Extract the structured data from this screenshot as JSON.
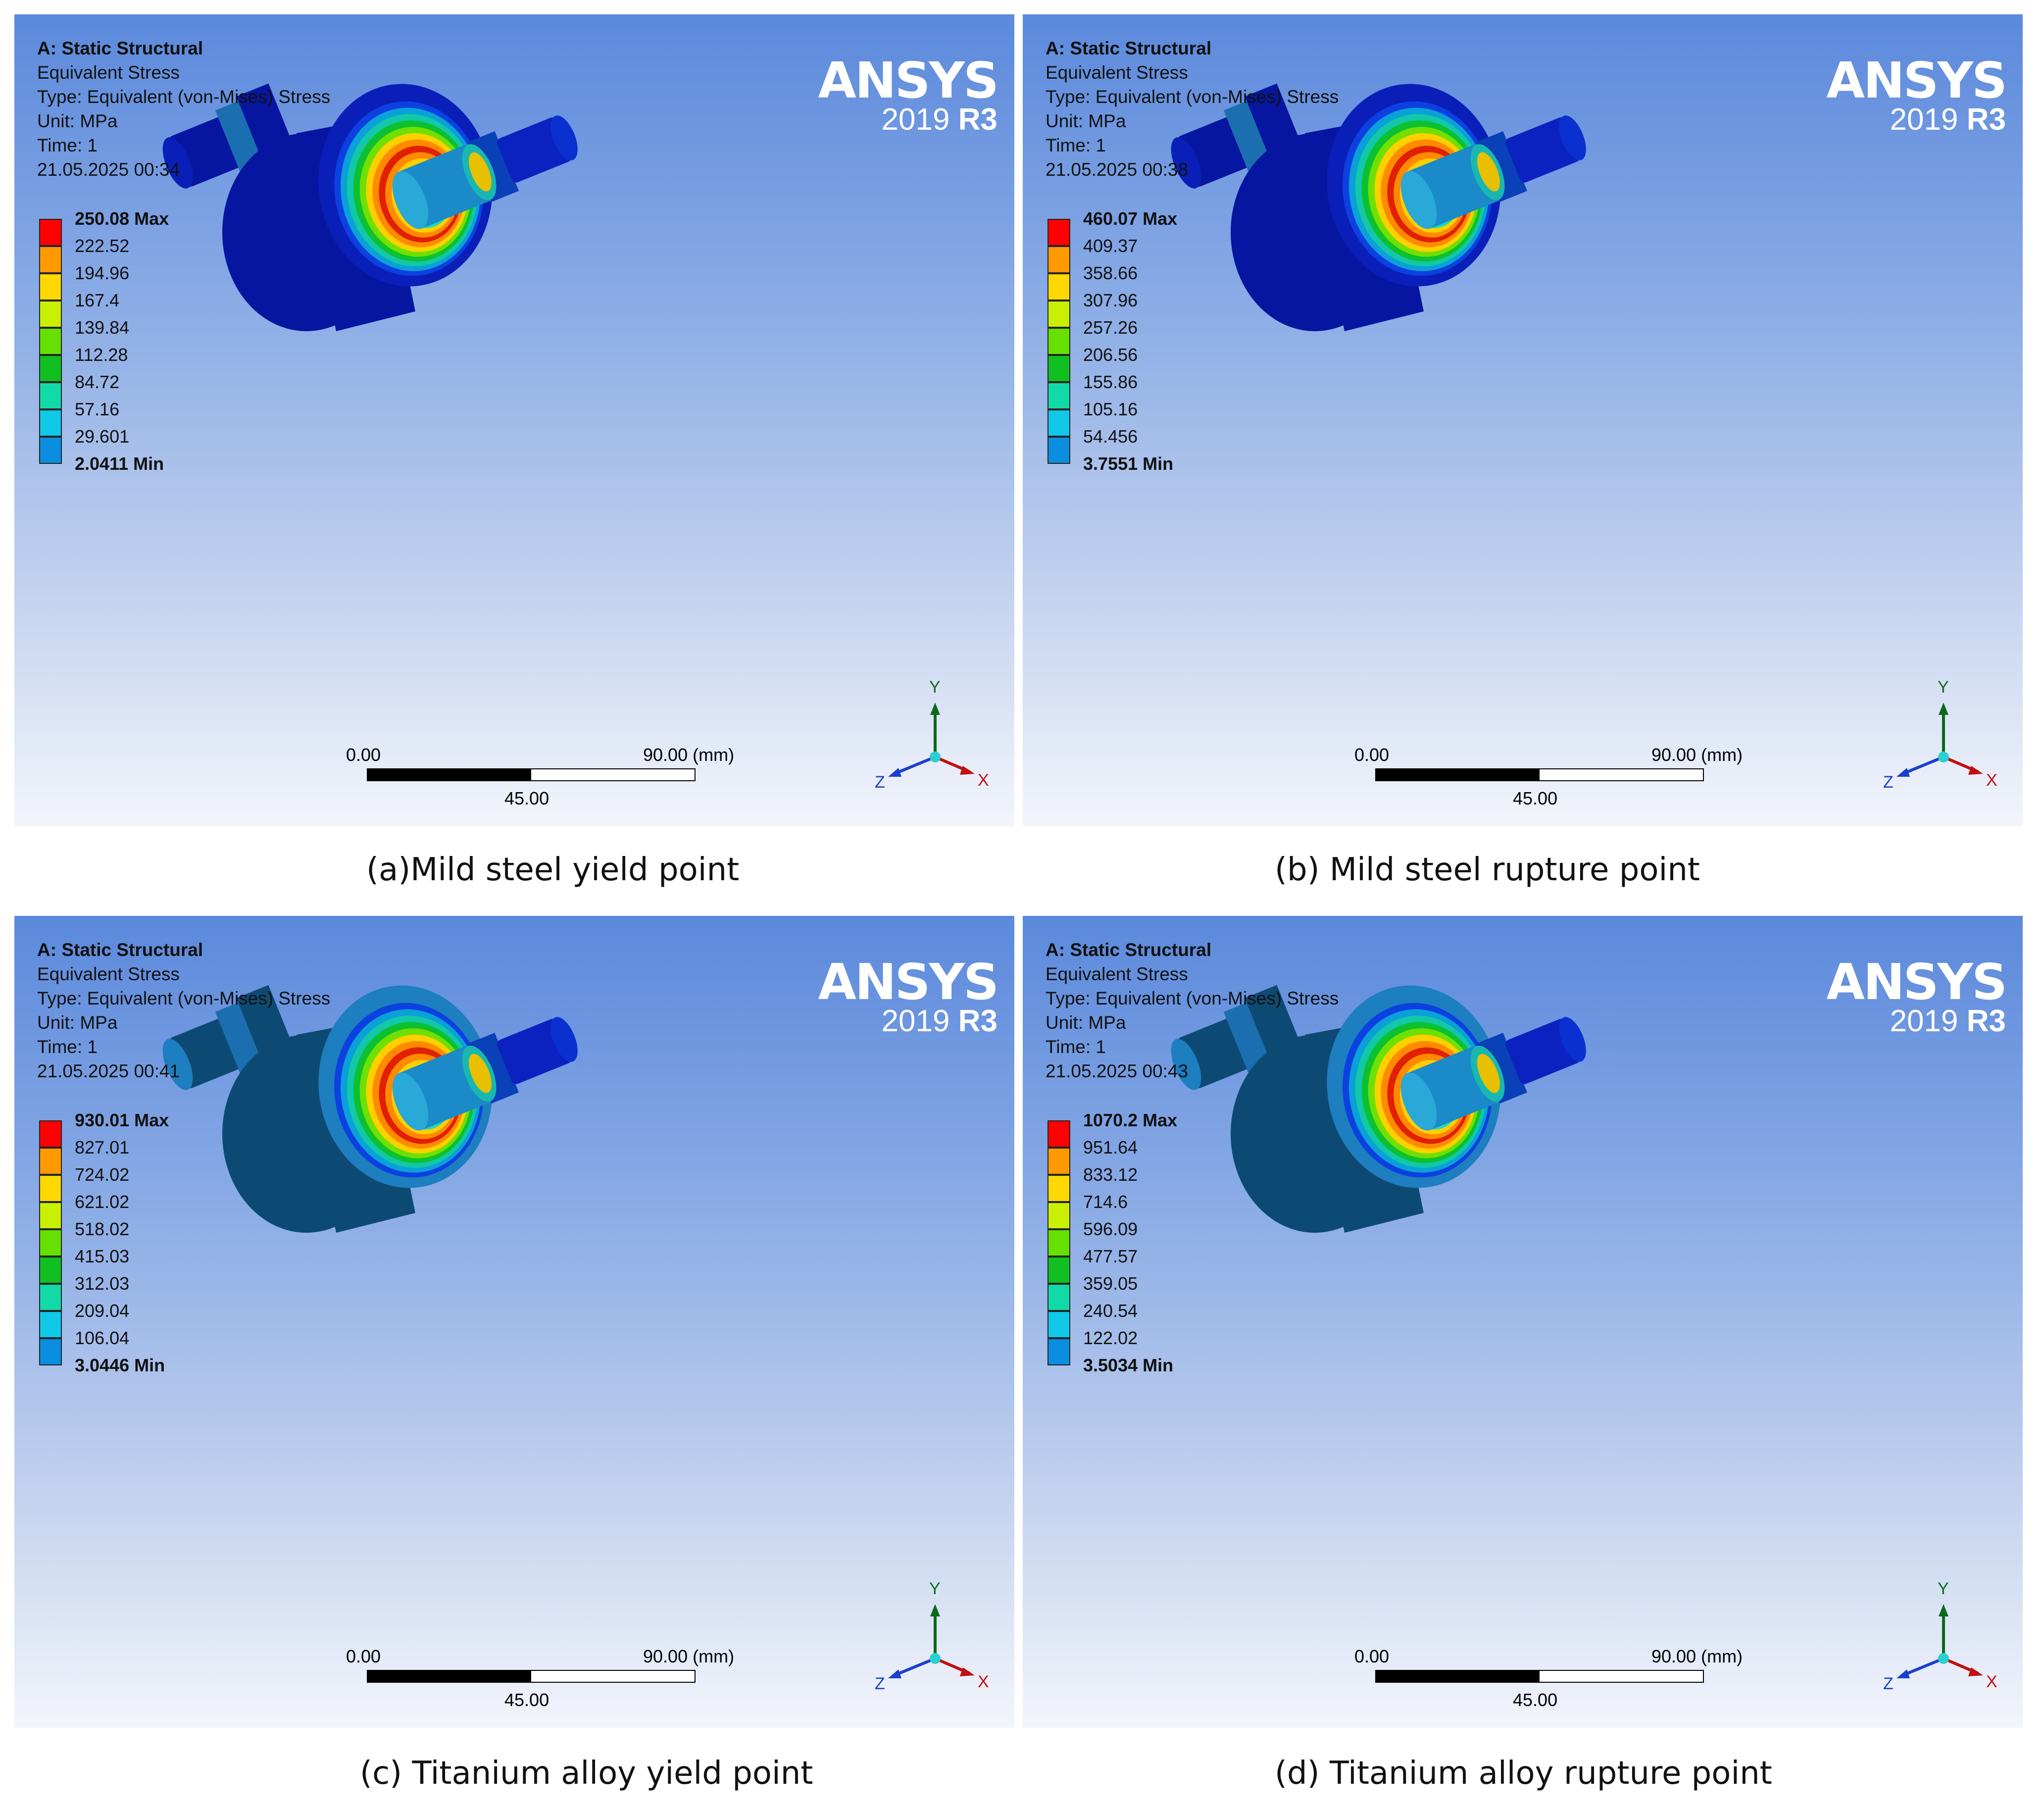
{
  "panels": [
    {
      "header": [
        "A: Static Structural",
        "Equivalent Stress",
        "Type: Equivalent (von-Mises) Stress",
        "Unit: MPa",
        "Time: 1",
        "21.05.2025 00:34"
      ],
      "legend": [
        "250.08 Max",
        "222.52",
        "194.96",
        "167.4",
        "139.84",
        "112.28",
        "84.72",
        "57.16",
        "29.601",
        "2.0411 Min"
      ],
      "body_color": "#0a1fb8",
      "side_color": "#0716a0",
      "caption": "(a)Mild steel yield point"
    },
    {
      "header": [
        "A: Static Structural",
        "Equivalent Stress",
        "Type: Equivalent (von-Mises) Stress",
        "Unit: MPa",
        "Time: 1",
        "21.05.2025 00:38"
      ],
      "legend": [
        "460.07 Max",
        "409.37",
        "358.66",
        "307.96",
        "257.26",
        "206.56",
        "155.86",
        "105.16",
        "54.456",
        "3.7551 Min"
      ],
      "body_color": "#0a1fb8",
      "side_color": "#0716a0",
      "caption": "(b) Mild steel rupture point"
    },
    {
      "header": [
        "A: Static Structural",
        "Equivalent Stress",
        "Type: Equivalent (von-Mises) Stress",
        "Unit: MPa",
        "Time: 1",
        "21.05.2025 00:41"
      ],
      "legend": [
        "930.01 Max",
        "827.01",
        "724.02",
        "621.02",
        "518.02",
        "415.03",
        "312.03",
        "209.04",
        "106.04",
        "3.0446 Min"
      ],
      "body_color": "#1d7ec0",
      "side_color": "#0d4a73",
      "caption": "(c) Titanium alloy yield point"
    },
    {
      "header": [
        "A: Static Structural",
        "Equivalent Stress",
        "Type: Equivalent (von-Mises) Stress",
        "Unit: MPa",
        "Time: 1",
        "21.05.2025 00:43"
      ],
      "legend": [
        "1070.2 Max",
        "951.64",
        "833.12",
        "714.6",
        "596.09",
        "477.57",
        "359.05",
        "240.54",
        "122.02",
        "3.5034 Min"
      ],
      "body_color": "#1d7ec0",
      "side_color": "#0d4a73",
      "caption": "(d) Titanium alloy rupture point"
    }
  ],
  "logo": {
    "brand": "ANSYS",
    "year": "2019",
    "release": "R3"
  },
  "scale_bar": {
    "start": "0.00",
    "end": "90.00",
    "unit": "(mm)",
    "mid": "45.00"
  },
  "triad": {
    "y": "Y",
    "x": "X",
    "z": "Z"
  },
  "legend_colors": [
    "#ff0000",
    "#ff9900",
    "#ffd800",
    "#c8f000",
    "#66e000",
    "#10c020",
    "#11d9a8",
    "#10c8e8",
    "#0a8fe0",
    "#0000ff"
  ]
}
